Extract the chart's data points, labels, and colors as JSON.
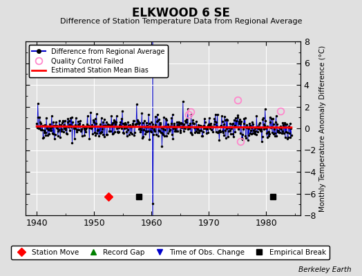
{
  "title": "ELKWOOD 6 SE",
  "subtitle": "Difference of Station Temperature Data from Regional Average",
  "ylabel": "Monthly Temperature Anomaly Difference (°C)",
  "credit": "Berkeley Earth",
  "xlim": [
    1938,
    1986
  ],
  "ylim": [
    -8,
    8
  ],
  "yticks": [
    -8,
    -6,
    -4,
    -2,
    0,
    2,
    4,
    6,
    8
  ],
  "xticks": [
    1940,
    1950,
    1960,
    1970,
    1980
  ],
  "bg_color": "#e0e0e0",
  "plot_bg_color": "#e0e0e0",
  "grid_color": "white",
  "line_color": "#0000cc",
  "dot_color": "black",
  "bias_color": "red",
  "bias_value": 0.18,
  "bias_slope": -0.0025,
  "station_move_x": 1952.5,
  "empirical_break_x1": 1957.8,
  "empirical_break_x2": 1981.2,
  "time_of_obs_change_x": 1960.25,
  "qc_failed_points": [
    [
      1966.5,
      1.3
    ],
    [
      1966.9,
      1.5
    ],
    [
      1975.1,
      2.6
    ],
    [
      1975.5,
      -1.2
    ],
    [
      1982.5,
      1.6
    ]
  ],
  "spike_down_x": 1960.25,
  "spike_down_y": -6.9,
  "random_seed": 42,
  "t_start": 1940.0,
  "t_end": 1984.5
}
